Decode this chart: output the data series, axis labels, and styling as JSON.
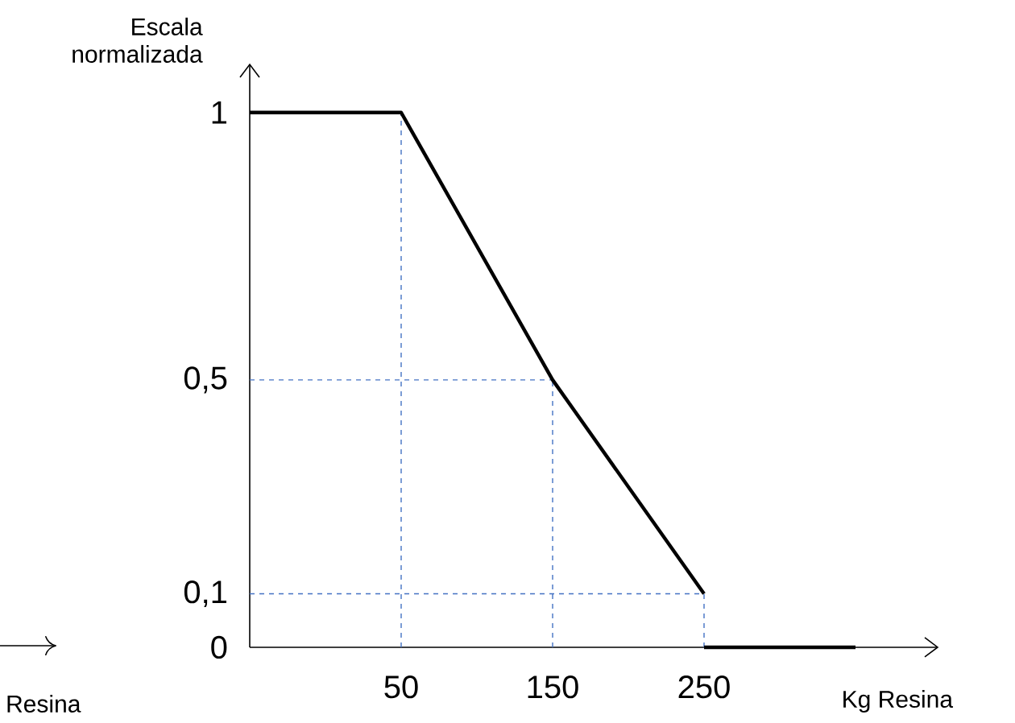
{
  "chart_data": {
    "type": "line",
    "xlabel": "Kg Resina",
    "ylabel": "Escala normalizada",
    "categories": [
      null,
      "50",
      "150",
      "250",
      null
    ],
    "series": [
      {
        "color": "#000000",
        "values": [
          1,
          1,
          0.5,
          0.1,
          null
        ]
      },
      {
        "color": "#000000",
        "values": [
          null,
          null,
          null,
          0,
          0
        ]
      }
    ],
    "ylim": [
      0,
      1.09
    ],
    "yticks": [
      0,
      {
        "value": 0.1,
        "label": "0,1"
      },
      {
        "value": 0.5,
        "label": "0,5"
      },
      1
    ],
    "annotations": [
      "Resina"
    ],
    "ref_lines": [
      {
        "axis": "x",
        "value": "50",
        "color": "#4472c4",
        "line_style": "dashed"
      },
      {
        "axis": "x",
        "value": "150",
        "color": "#4472c4",
        "line_style": "dashed"
      },
      {
        "axis": "x",
        "value": "250",
        "color": "#4472c4",
        "line_style": "dashed"
      },
      {
        "axis": "y",
        "value": 0.5,
        "color": "#4472c4",
        "line_style": "dashed"
      },
      {
        "axis": "y",
        "value": 0.1,
        "color": "#4472c4",
        "line_style": "dashed"
      }
    ],
    "grid": false,
    "marker": "none",
    "line_style": "solid"
  }
}
